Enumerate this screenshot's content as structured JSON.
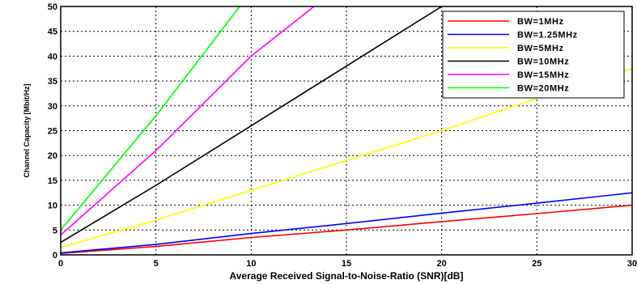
{
  "chart_data": {
    "type": "line",
    "xlabel": "Average Received Signal-to-Noise-Ratio (SNR)[dB]",
    "ylabel": "Channel Capacity [Mbit/Hz]",
    "xlim": [
      0,
      30
    ],
    "ylim": [
      0,
      50
    ],
    "x_ticks": [
      "0",
      "5",
      "10",
      "15",
      "20",
      "25",
      "30"
    ],
    "y_ticks": [
      "0",
      "5",
      "10",
      "15",
      "20",
      "25",
      "30",
      "35",
      "40",
      "45",
      "50"
    ],
    "grid": true,
    "legend_position": "top-right",
    "series": [
      {
        "name": "BW=1MHz",
        "color": "#ff0000",
        "x": [
          0,
          5,
          10,
          15,
          20,
          25,
          30
        ],
        "y": [
          0.3,
          1.7,
          3.5,
          5.0,
          6.7,
          8.3,
          10.0
        ]
      },
      {
        "name": "BW=1.25MHz",
        "color": "#0000ff",
        "x": [
          0,
          5,
          10,
          15,
          20,
          25,
          30
        ],
        "y": [
          0.4,
          2.1,
          4.3,
          6.3,
          8.4,
          10.4,
          12.5
        ]
      },
      {
        "name": "BW=5MHz",
        "color": "#ffff00",
        "x": [
          0,
          5,
          10,
          15,
          20,
          25,
          30
        ],
        "y": [
          1.5,
          7.0,
          13.0,
          19.0,
          25.0,
          31.5,
          37.5
        ]
      },
      {
        "name": "BW=10MHz",
        "color": "#000000",
        "x": [
          0,
          5,
          10,
          15,
          20
        ],
        "y": [
          2.5,
          14.0,
          26.0,
          38.0,
          50.0
        ]
      },
      {
        "name": "BW=15MHz",
        "color": "#ff00ff",
        "x": [
          0,
          5,
          10,
          13.3
        ],
        "y": [
          4.0,
          21.0,
          40.0,
          50.0
        ]
      },
      {
        "name": "BW=20MHz",
        "color": "#00ff00",
        "x": [
          0,
          5,
          9.4
        ],
        "y": [
          5.0,
          28.0,
          50.0
        ]
      }
    ]
  }
}
